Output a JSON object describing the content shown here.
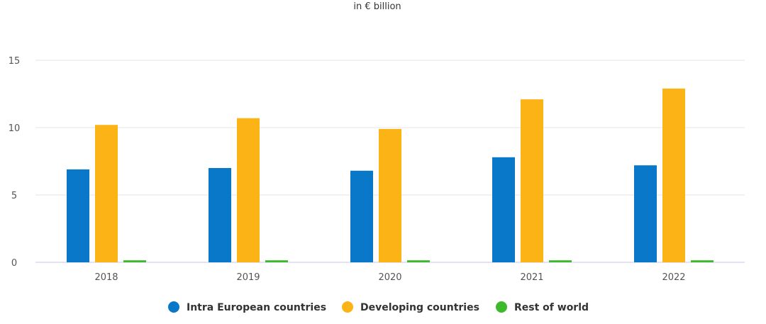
{
  "chart_data": {
    "type": "bar",
    "subtitle": "in € billion",
    "xlabel": "",
    "ylabel": "",
    "ylim": [
      0,
      17
    ],
    "yticks": [
      0,
      5,
      10,
      15
    ],
    "categories": [
      "2018",
      "2019",
      "2020",
      "2021",
      "2022"
    ],
    "series": [
      {
        "name": "Intra European countries",
        "color": "#0a78c8",
        "values": [
          6.9,
          7.0,
          6.8,
          7.8,
          7.2
        ]
      },
      {
        "name": "Developing countries",
        "color": "#fcb316",
        "values": [
          10.2,
          10.7,
          9.9,
          12.1,
          12.9
        ]
      },
      {
        "name": "Rest of world",
        "color": "#3cba2c",
        "values": [
          0.15,
          0.15,
          0.15,
          0.15,
          0.15
        ]
      }
    ],
    "grid": true,
    "legend_position": "bottom-center"
  }
}
